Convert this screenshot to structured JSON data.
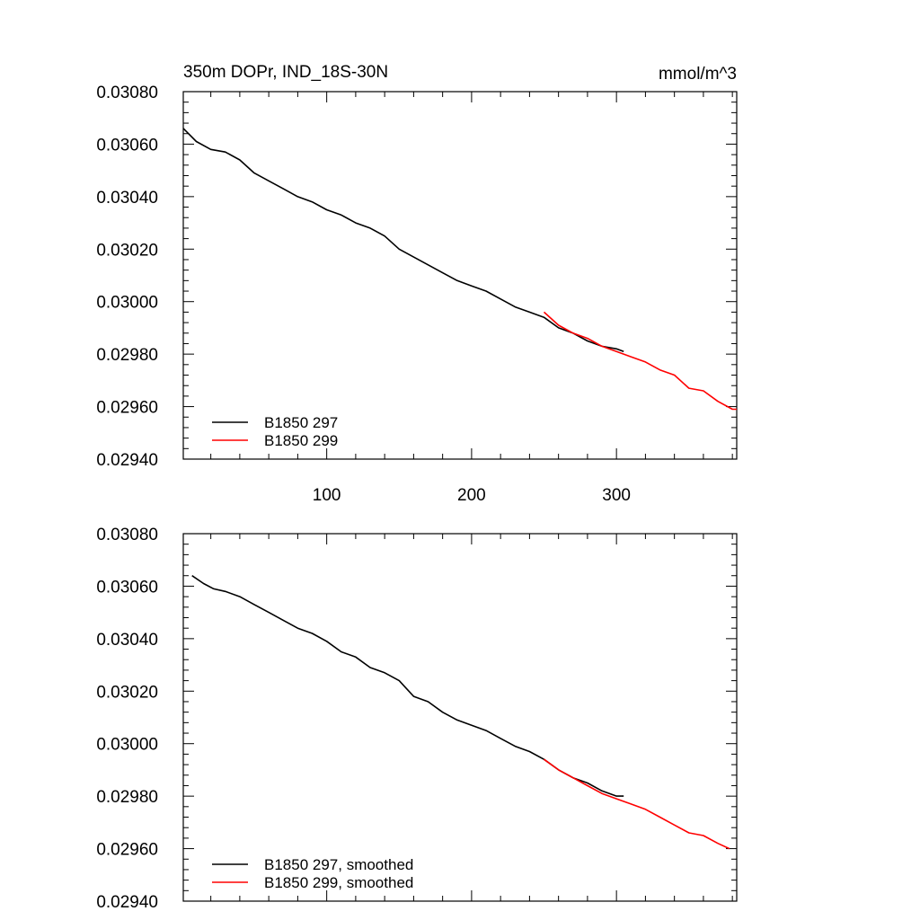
{
  "chart_data": [
    {
      "type": "line",
      "title": "350m DOPr, IND_18S-30N",
      "units": "mmol/m^3",
      "xlabel": "",
      "ylabel": "",
      "xlim": [
        1,
        383
      ],
      "ylim": [
        0.0294,
        0.0308
      ],
      "x_tick_labels": [
        "100",
        "200",
        "300"
      ],
      "x_ticks": [
        100,
        200,
        300
      ],
      "y_tick_labels": [
        "0.02940",
        "0.02960",
        "0.02980",
        "0.03000",
        "0.03020",
        "0.03040",
        "0.03060",
        "0.03080"
      ],
      "y_ticks": [
        0.0294,
        0.0296,
        0.0298,
        0.03,
        0.0302,
        0.0304,
        0.0306,
        0.0308
      ],
      "legend_position": "bottom-left",
      "series": [
        {
          "name": "B1850 297",
          "color": "#000000",
          "x": [
            1,
            10,
            20,
            30,
            40,
            50,
            60,
            70,
            80,
            90,
            100,
            110,
            120,
            130,
            140,
            150,
            160,
            170,
            180,
            190,
            200,
            210,
            220,
            230,
            240,
            250,
            260,
            270,
            280,
            290,
            300,
            305
          ],
          "y": [
            0.03066,
            0.03061,
            0.03058,
            0.03057,
            0.03054,
            0.03049,
            0.03046,
            0.03043,
            0.0304,
            0.03038,
            0.03035,
            0.03033,
            0.0303,
            0.03028,
            0.03025,
            0.0302,
            0.03017,
            0.03014,
            0.03011,
            0.03008,
            0.03006,
            0.03004,
            0.03001,
            0.02998,
            0.02996,
            0.02994,
            0.0299,
            0.02988,
            0.02985,
            0.02983,
            0.02982,
            0.02981
          ]
        },
        {
          "name": "B1850 299",
          "color": "#ff0000",
          "x": [
            250,
            260,
            270,
            280,
            290,
            300,
            310,
            320,
            330,
            340,
            350,
            360,
            370,
            380,
            383
          ],
          "y": [
            0.02996,
            0.02991,
            0.02988,
            0.02986,
            0.02983,
            0.02981,
            0.02979,
            0.02977,
            0.02974,
            0.02972,
            0.02967,
            0.02966,
            0.02962,
            0.02959,
            0.02959
          ]
        }
      ]
    },
    {
      "type": "line",
      "title": "",
      "xlabel": "",
      "ylabel": "",
      "xlim": [
        1,
        383
      ],
      "ylim": [
        0.0294,
        0.0308
      ],
      "x_ticks": [
        100,
        200,
        300
      ],
      "y_tick_labels": [
        "0.02940",
        "0.02960",
        "0.02980",
        "0.03000",
        "0.03020",
        "0.03040",
        "0.03060",
        "0.03080"
      ],
      "y_ticks": [
        0.0294,
        0.0296,
        0.0298,
        0.03,
        0.0302,
        0.0304,
        0.0306,
        0.0308
      ],
      "legend_position": "bottom-left",
      "series": [
        {
          "name": "B1850 297, smoothed",
          "color": "#000000",
          "x": [
            7,
            15,
            22,
            30,
            40,
            50,
            60,
            70,
            80,
            90,
            100,
            110,
            120,
            130,
            140,
            150,
            160,
            170,
            180,
            190,
            200,
            210,
            220,
            230,
            240,
            250,
            260,
            270,
            280,
            290,
            300,
            305
          ],
          "y": [
            0.03064,
            0.03061,
            0.03059,
            0.03058,
            0.03056,
            0.03053,
            0.0305,
            0.03047,
            0.03044,
            0.03042,
            0.03039,
            0.03035,
            0.03033,
            0.03029,
            0.03027,
            0.03024,
            0.03018,
            0.03016,
            0.03012,
            0.03009,
            0.03007,
            0.03005,
            0.03002,
            0.02999,
            0.02997,
            0.02994,
            0.0299,
            0.02987,
            0.02985,
            0.02982,
            0.0298,
            0.0298
          ]
        },
        {
          "name": "B1850 299, smoothed",
          "color": "#ff0000",
          "x": [
            250,
            260,
            270,
            280,
            290,
            300,
            310,
            320,
            330,
            340,
            350,
            360,
            370,
            378
          ],
          "y": [
            0.02994,
            0.0299,
            0.02987,
            0.02984,
            0.02981,
            0.02979,
            0.02977,
            0.02975,
            0.02972,
            0.02969,
            0.02966,
            0.02965,
            0.02962,
            0.0296
          ]
        }
      ]
    }
  ]
}
